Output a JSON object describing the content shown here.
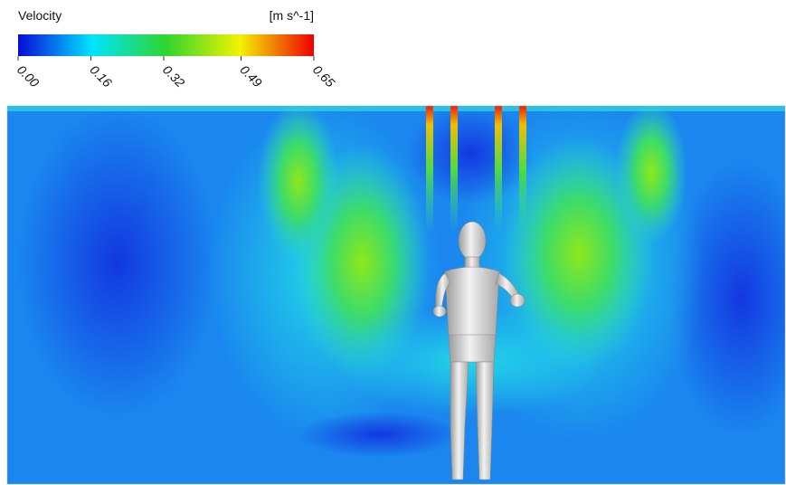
{
  "chart_data": {
    "type": "contour",
    "title": "Velocity",
    "unit": "[m s^-1]",
    "colormap": [
      "#0a0ad8",
      "#00e4ff",
      "#2ed62e",
      "#f2f200",
      "#f00000"
    ],
    "clim": [
      0,
      0.65
    ],
    "cticks": [
      {
        "value": 0,
        "label": "0.00"
      },
      {
        "value": 0.16,
        "label": "0.16"
      },
      {
        "value": 0.32,
        "label": "0.32"
      },
      {
        "value": 0.49,
        "label": "0.49"
      },
      {
        "value": 0.65,
        "label": "0.65"
      }
    ]
  }
}
